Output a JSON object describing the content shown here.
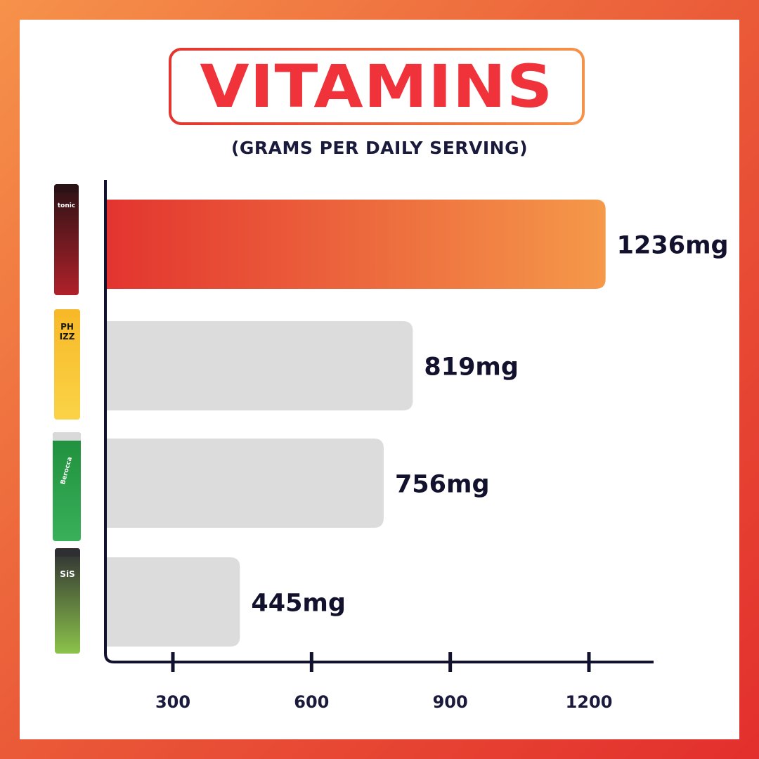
{
  "title": "VITAMINS",
  "subtitle": "(GRAMS PER DAILY SERVING)",
  "colors": {
    "highlight_start": "#e3342f",
    "highlight_end": "#f5994a",
    "bar_default": "#dcdcdc",
    "axis": "#12122e",
    "title": "#f0333b"
  },
  "products": [
    {
      "brand": "tonic",
      "icon": "tonic-tube-icon",
      "colors": [
        "#2a1215",
        "#b0212a"
      ]
    },
    {
      "brand": "PH IZZ",
      "icon": "phizz-tube-icon",
      "colors": [
        "#f7b928",
        "#fbd347"
      ]
    },
    {
      "brand": "Berocca",
      "icon": "berocca-tube-icon",
      "colors": [
        "#1f8f3c",
        "#39b05a"
      ]
    },
    {
      "brand": "SiS",
      "icon": "sis-tube-icon",
      "colors": [
        "#2f2f33",
        "#8bc34a"
      ]
    }
  ],
  "chart_data": {
    "type": "bar",
    "orientation": "horizontal",
    "categories": [
      "tonic",
      "PHIZZ",
      "Berocca",
      "SiS"
    ],
    "values": [
      1236,
      819,
      756,
      445
    ],
    "value_labels": [
      "1236mg",
      "819mg",
      "756mg",
      "445mg"
    ],
    "highlight_index": 0,
    "x_ticks": [
      300,
      600,
      900,
      1200
    ],
    "x_tick_labels": [
      "300",
      "600",
      "900",
      "1200"
    ],
    "grid": false,
    "legend": "none"
  }
}
